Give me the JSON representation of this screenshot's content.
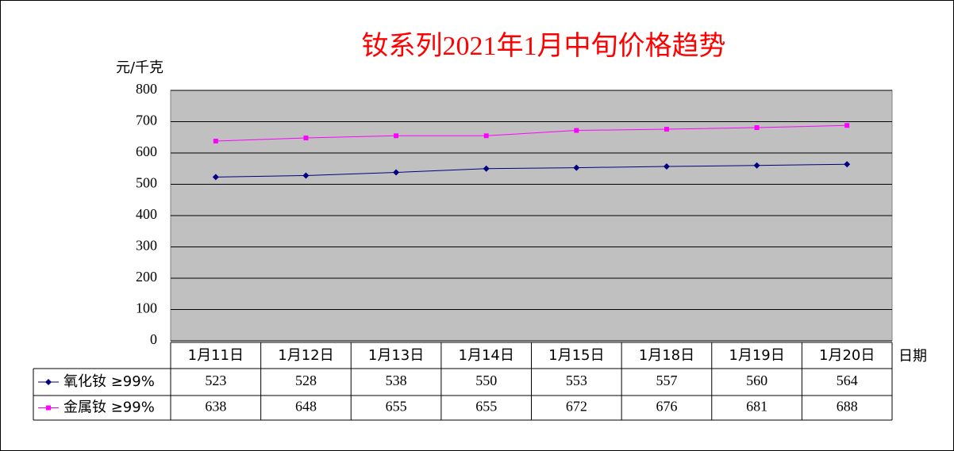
{
  "chart_data": {
    "type": "line",
    "title": "钕系列2021年1月中旬价格趋势",
    "y_label": "元/千克",
    "x_label": "日期",
    "categories": [
      "1月11日",
      "1月12日",
      "1月13日",
      "1月14日",
      "1月15日",
      "1月18日",
      "1月19日",
      "1月20日"
    ],
    "series": [
      {
        "name": "氧化钕 ≥99%",
        "color": "#000080",
        "marker": "diamond",
        "values": [
          523,
          528,
          538,
          550,
          553,
          557,
          560,
          564
        ]
      },
      {
        "name": "金属钕 ≥99%",
        "color": "#ff00ff",
        "marker": "square",
        "values": [
          638,
          648,
          655,
          655,
          672,
          676,
          681,
          688
        ]
      }
    ],
    "ylim": [
      0,
      800
    ],
    "yticks": [
      0,
      100,
      200,
      300,
      400,
      500,
      600,
      700,
      800
    ],
    "grid": true,
    "plot_background": "#c0c0c0",
    "title_color": "#ff0000"
  }
}
